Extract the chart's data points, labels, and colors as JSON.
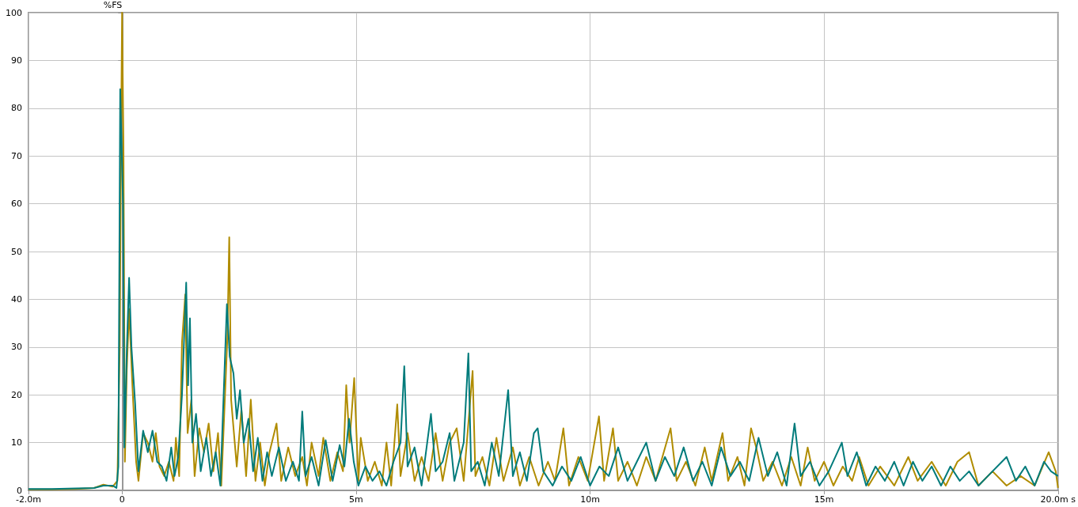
{
  "chart_data": {
    "type": "line",
    "ylabel": "%FS",
    "xlim": [
      -2,
      20
    ],
    "xticks": [
      {
        "value": -2,
        "label": "-2.0m"
      },
      0,
      {
        "value": 5,
        "label": "5m"
      },
      {
        "value": 10,
        "label": "10m"
      },
      {
        "value": 15,
        "label": "15m"
      },
      {
        "value": 20,
        "label": "20.0m s"
      }
    ],
    "ylim": [
      0,
      100
    ],
    "yticks": [
      0,
      10,
      20,
      30,
      40,
      50,
      60,
      70,
      80,
      90,
      100
    ],
    "grid": true,
    "marker": "none",
    "line_style": "solid",
    "series": [
      {
        "color": "#007b7b",
        "x": [
          -2,
          -1.5,
          -1,
          -0.6,
          -0.4,
          -0.2,
          -0.12,
          -0.08,
          -0.04,
          -0.02,
          0.02,
          0.05,
          0.1,
          0.15,
          0.2,
          0.28,
          0.35,
          0.45,
          0.55,
          0.65,
          0.75,
          0.85,
          0.95,
          1.05,
          1.12,
          1.2,
          1.28,
          1.37,
          1.41,
          1.45,
          1.5,
          1.58,
          1.68,
          1.8,
          1.9,
          2.0,
          2.1,
          2.24,
          2.3,
          2.38,
          2.45,
          2.52,
          2.6,
          2.7,
          2.8,
          2.9,
          3.0,
          3.1,
          3.2,
          3.35,
          3.5,
          3.65,
          3.78,
          3.85,
          3.92,
          4.05,
          4.2,
          4.35,
          4.5,
          4.65,
          4.75,
          4.85,
          4.95,
          5.05,
          5.2,
          5.35,
          5.5,
          5.65,
          5.8,
          5.95,
          6.03,
          6.1,
          6.25,
          6.4,
          6.6,
          6.7,
          6.85,
          7.0,
          7.1,
          7.3,
          7.4,
          7.46,
          7.6,
          7.75,
          7.9,
          8.05,
          8.25,
          8.35,
          8.5,
          8.65,
          8.8,
          8.88,
          9.0,
          9.2,
          9.4,
          9.6,
          9.8,
          10.0,
          10.2,
          10.4,
          10.6,
          10.8,
          11.0,
          11.2,
          11.4,
          11.6,
          11.8,
          12.0,
          12.2,
          12.4,
          12.6,
          12.8,
          13.0,
          13.2,
          13.4,
          13.6,
          13.8,
          14.0,
          14.2,
          14.37,
          14.5,
          14.7,
          14.9,
          15.1,
          15.38,
          15.5,
          15.7,
          15.9,
          16.1,
          16.3,
          16.5,
          16.7,
          16.9,
          17.1,
          17.3,
          17.5,
          17.7,
          17.9,
          18.1,
          18.3,
          18.5,
          18.9,
          19.1,
          19.3,
          19.5,
          19.7,
          19.85,
          20
        ],
        "values": [
          0.3,
          0.3,
          0.4,
          0.5,
          1.0,
          1.0,
          0.5,
          5,
          84,
          76,
          60,
          9,
          29,
          44.5,
          30,
          18,
          4,
          12.5,
          8,
          12.5,
          6,
          5,
          2,
          9,
          3,
          7,
          20,
          43.5,
          22,
          36,
          10,
          16,
          4,
          11,
          3,
          8,
          1,
          39,
          28,
          24.5,
          15,
          21,
          10,
          15,
          4,
          11,
          2,
          8,
          3,
          9,
          2,
          6,
          2,
          16.5,
          3,
          7,
          1,
          10.5,
          2,
          9.5,
          5,
          15,
          6,
          1,
          5,
          2,
          4,
          1,
          6,
          10,
          26,
          5,
          9,
          1,
          16,
          4,
          6,
          12,
          2,
          10,
          28.7,
          4,
          6,
          1,
          10,
          3,
          21,
          3,
          8,
          2,
          12,
          13,
          4,
          1,
          5,
          2,
          7,
          1,
          5,
          3,
          9,
          2,
          6,
          10,
          2,
          7,
          3,
          9,
          2,
          6,
          1,
          9,
          3,
          6,
          2,
          11,
          3,
          8,
          1,
          14,
          3,
          6,
          1,
          4,
          10,
          3,
          8,
          1,
          5,
          2,
          6,
          1,
          6,
          2,
          5,
          1,
          5,
          2,
          4,
          1,
          3,
          7,
          2,
          5,
          1,
          6,
          4,
          3
        ]
      },
      {
        "color": "#b08c00",
        "x": [
          -2,
          -1.5,
          -1,
          -0.6,
          -0.4,
          -0.2,
          -0.1,
          -0.05,
          -0.02,
          0.0,
          0.03,
          0.06,
          0.1,
          0.15,
          0.22,
          0.3,
          0.35,
          0.45,
          0.55,
          0.65,
          0.72,
          0.8,
          0.9,
          1.0,
          1.1,
          1.15,
          1.22,
          1.28,
          1.35,
          1.4,
          1.48,
          1.55,
          1.65,
          1.75,
          1.85,
          1.95,
          2.05,
          2.12,
          2.25,
          2.29,
          2.33,
          2.45,
          2.55,
          2.65,
          2.75,
          2.85,
          2.95,
          3.05,
          3.15,
          3.3,
          3.4,
          3.55,
          3.7,
          3.85,
          3.95,
          4.05,
          4.2,
          4.3,
          4.45,
          4.6,
          4.72,
          4.79,
          4.86,
          4.96,
          5.05,
          5.1,
          5.25,
          5.4,
          5.55,
          5.65,
          5.75,
          5.88,
          5.95,
          6.1,
          6.25,
          6.4,
          6.55,
          6.7,
          6.85,
          7.0,
          7.15,
          7.3,
          7.49,
          7.55,
          7.7,
          7.85,
          8.0,
          8.15,
          8.35,
          8.5,
          8.7,
          8.9,
          9.1,
          9.25,
          9.43,
          9.55,
          9.75,
          9.95,
          10.19,
          10.3,
          10.49,
          10.6,
          10.8,
          11.0,
          11.2,
          11.4,
          11.72,
          11.85,
          12.05,
          12.25,
          12.45,
          12.6,
          12.83,
          12.95,
          13.15,
          13.3,
          13.44,
          13.55,
          13.7,
          13.9,
          14.1,
          14.3,
          14.5,
          14.65,
          14.8,
          15.0,
          15.2,
          15.4,
          15.6,
          15.75,
          15.95,
          16.2,
          16.5,
          16.8,
          17.0,
          17.3,
          17.6,
          17.85,
          18.1,
          18.3,
          18.6,
          18.9,
          19.2,
          19.5,
          19.8,
          19.95,
          20
        ],
        "values": [
          0.2,
          0.2,
          0.3,
          0.5,
          1.2,
          0.8,
          2,
          30,
          76,
          100,
          71,
          6,
          25,
          38,
          22,
          6,
          2,
          12,
          10,
          6,
          12,
          5,
          3,
          6,
          2,
          11,
          3,
          31,
          41,
          12,
          19,
          3,
          13,
          8,
          14,
          4,
          12,
          1,
          32,
          53,
          19,
          5,
          17,
          3,
          19,
          2,
          10,
          1,
          8,
          14,
          2,
          9,
          3,
          7,
          1,
          10,
          3,
          11,
          2,
          8,
          4,
          22,
          10,
          23.5,
          2,
          11,
          2,
          6,
          1,
          10,
          1,
          18,
          3,
          12,
          2,
          7,
          2,
          12,
          2,
          10,
          13,
          2,
          25,
          3,
          7,
          1,
          11,
          2,
          9,
          1,
          7,
          1,
          6,
          2,
          13,
          1,
          7,
          2,
          15.5,
          2,
          13,
          2,
          6,
          1,
          7,
          2,
          13,
          2,
          6,
          1,
          9,
          2,
          12,
          2,
          7,
          1,
          13,
          9,
          2,
          6,
          1,
          7,
          1,
          9,
          2,
          6,
          1,
          5,
          2,
          7,
          1,
          5,
          1,
          7,
          2,
          6,
          1,
          6,
          8,
          1,
          4,
          1,
          3,
          1,
          8,
          4,
          0.5
        ]
      }
    ]
  }
}
